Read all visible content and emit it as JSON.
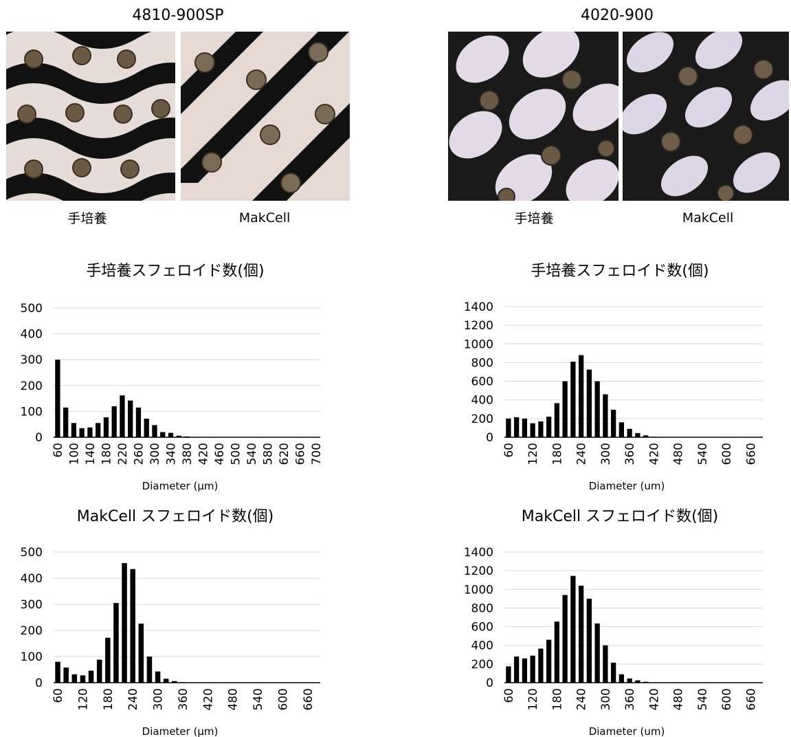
{
  "panels": [
    {
      "title": "4810-900SP",
      "photos": [
        {
          "label": "手培養",
          "style": "pink-wavy"
        },
        {
          "label": "MakCell",
          "style": "pink-diagonal"
        }
      ]
    },
    {
      "title": "4020-900",
      "photos": [
        {
          "label": "手培養",
          "style": "lavender-ovals"
        },
        {
          "label": "MakCell",
          "style": "lavender-ovals-tight"
        }
      ]
    }
  ],
  "colors": {
    "bar": "#000000",
    "grid": "#d9d9d9",
    "axis": "#000000"
  },
  "chart_data": [
    {
      "type": "bar",
      "title": "手培養スフェロイド数(個)",
      "xlabel": "Diameter (μm)",
      "ylabel": "",
      "ylim": [
        0,
        500
      ],
      "yticks": [
        0,
        100,
        200,
        300,
        400,
        500
      ],
      "x": [
        60,
        80,
        100,
        120,
        140,
        160,
        180,
        200,
        220,
        240,
        260,
        280,
        300,
        320,
        340,
        360,
        380,
        400,
        420,
        440,
        460,
        480,
        500,
        520,
        540,
        560,
        580,
        600,
        620,
        640,
        660,
        680,
        700
      ],
      "values": [
        300,
        115,
        55,
        35,
        38,
        55,
        77,
        120,
        162,
        142,
        115,
        72,
        47,
        20,
        17,
        6,
        3,
        1,
        0,
        0,
        0,
        0,
        0,
        0,
        0,
        0,
        0,
        0,
        0,
        0,
        0,
        0,
        0
      ],
      "xtick_labels": [
        "60",
        "100",
        "140",
        "180",
        "220",
        "260",
        "300",
        "340",
        "380",
        "420",
        "460",
        "500",
        "540",
        "580",
        "620",
        "660",
        "700"
      ]
    },
    {
      "type": "bar",
      "title": "手培養スフェロイド数(個)",
      "xlabel": "Diameter (um)",
      "ylabel": "",
      "ylim": [
        0,
        1400
      ],
      "yticks": [
        0,
        200,
        400,
        600,
        800,
        1000,
        1200,
        1400
      ],
      "x": [
        60,
        80,
        100,
        120,
        140,
        160,
        180,
        200,
        220,
        240,
        260,
        280,
        300,
        320,
        340,
        360,
        380,
        400,
        420,
        440,
        460,
        480,
        500,
        520,
        540,
        560,
        580,
        600,
        620,
        640,
        660,
        680
      ],
      "values": [
        200,
        215,
        200,
        150,
        170,
        220,
        365,
        600,
        810,
        880,
        725,
        600,
        460,
        295,
        160,
        90,
        45,
        20,
        5,
        2,
        0,
        0,
        0,
        0,
        0,
        0,
        0,
        0,
        0,
        0,
        0,
        0
      ],
      "xtick_labels": [
        "60",
        "120",
        "180",
        "240",
        "300",
        "360",
        "420",
        "480",
        "540",
        "600",
        "660"
      ]
    },
    {
      "type": "bar",
      "title": "MakCell スフェロイド数(個)",
      "xlabel": "Diameter (μm)",
      "ylabel": "",
      "ylim": [
        0,
        500
      ],
      "yticks": [
        0,
        100,
        200,
        300,
        400,
        500
      ],
      "x": [
        60,
        80,
        100,
        120,
        140,
        160,
        180,
        200,
        220,
        240,
        260,
        280,
        300,
        320,
        340,
        360,
        380,
        400,
        420,
        440,
        460,
        480,
        500,
        520,
        540,
        560,
        580,
        600,
        620,
        640,
        660,
        680
      ],
      "values": [
        80,
        58,
        32,
        28,
        46,
        88,
        172,
        305,
        458,
        435,
        226,
        100,
        43,
        15,
        6,
        2,
        1,
        0,
        0,
        0,
        0,
        0,
        0,
        0,
        0,
        0,
        0,
        0,
        0,
        0,
        0,
        0
      ],
      "xtick_labels": [
        "60",
        "120",
        "180",
        "240",
        "300",
        "360",
        "420",
        "480",
        "540",
        "600",
        "660"
      ]
    },
    {
      "type": "bar",
      "title": "MakCell スフェロイド数(個)",
      "xlabel": "Diameter (um)",
      "ylabel": "",
      "ylim": [
        0,
        1400
      ],
      "yticks": [
        0,
        200,
        400,
        600,
        800,
        1000,
        1200,
        1400
      ],
      "x": [
        60,
        80,
        100,
        120,
        140,
        160,
        180,
        200,
        220,
        240,
        260,
        280,
        300,
        320,
        340,
        360,
        380,
        400,
        420,
        440,
        460,
        480,
        500,
        520,
        540,
        560,
        580,
        600,
        620,
        640,
        660,
        680
      ],
      "values": [
        175,
        280,
        260,
        290,
        365,
        460,
        655,
        940,
        1145,
        1040,
        900,
        635,
        400,
        215,
        90,
        45,
        25,
        10,
        3,
        1,
        0,
        0,
        0,
        0,
        0,
        0,
        0,
        0,
        0,
        0,
        0,
        0
      ],
      "xtick_labels": [
        "60",
        "120",
        "180",
        "240",
        "300",
        "360",
        "420",
        "480",
        "540",
        "600",
        "660"
      ]
    }
  ]
}
